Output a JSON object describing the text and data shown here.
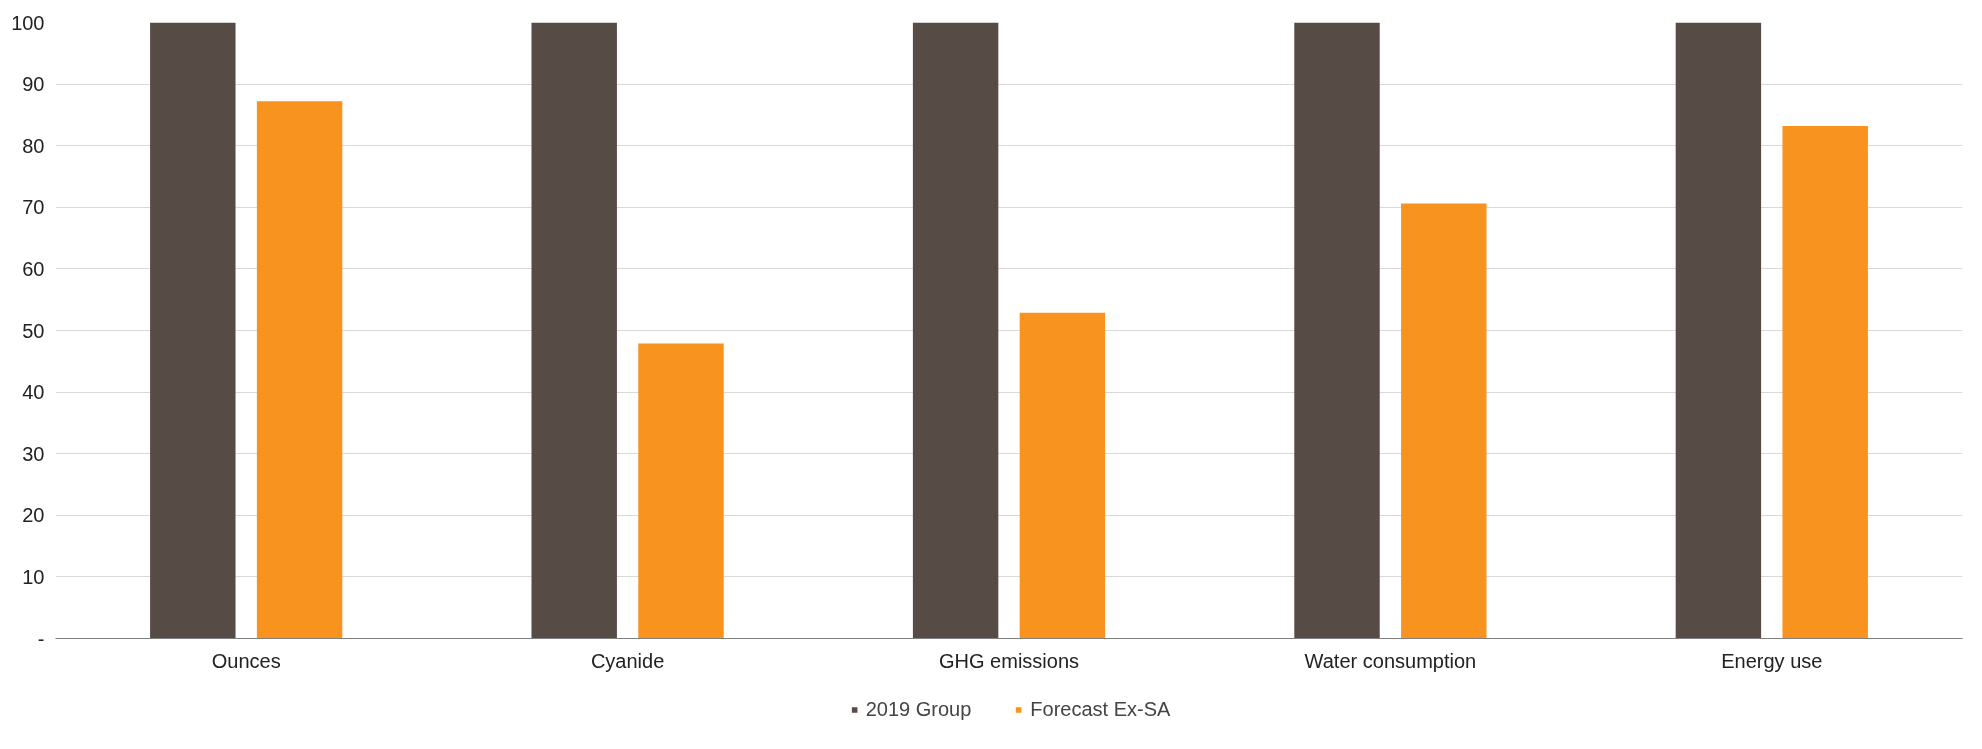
{
  "chart_data": {
    "type": "bar",
    "categories": [
      "Ounces",
      "Cyanide",
      "GHG emissions",
      "Water consumption",
      "Energy use"
    ],
    "series": [
      {
        "name": "2019 Group",
        "color": "#574b45",
        "values": [
          100,
          100,
          100,
          100,
          100
        ]
      },
      {
        "name": "Forecast Ex-SA",
        "color": "#f7931e",
        "values": [
          87.2,
          47.9,
          52.9,
          70.6,
          83.2
        ]
      }
    ],
    "ylim": [
      0,
      100
    ],
    "yticks": [
      {
        "value": 0,
        "label": "-"
      },
      10,
      20,
      30,
      40,
      50,
      60,
      70,
      80,
      90,
      100
    ],
    "grid": "y",
    "legend": "bottom"
  }
}
